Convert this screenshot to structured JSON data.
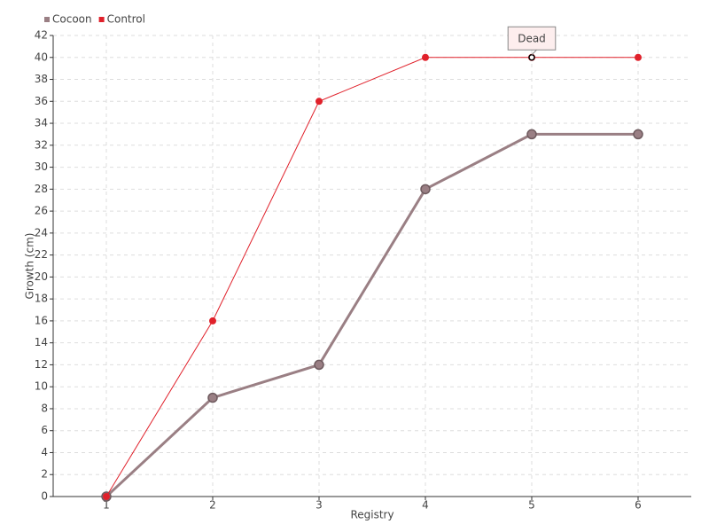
{
  "chart_data": {
    "type": "line",
    "x_label": "Registry",
    "y_label": "Growth (cm)",
    "x": [
      1,
      2,
      3,
      4,
      5,
      6
    ],
    "series": [
      {
        "name": "Cocoon",
        "color": "#9a7f84",
        "values": [
          0,
          9,
          12,
          28,
          33,
          33
        ]
      },
      {
        "name": "Control",
        "color": "#e0202a",
        "values": [
          0,
          16,
          36,
          40,
          40,
          40
        ]
      }
    ],
    "xlim": [
      0.5,
      6.5
    ],
    "xticks": [
      1,
      2,
      3,
      4,
      5,
      6
    ],
    "ylim": [
      0,
      42
    ],
    "yticks": [
      0,
      2,
      4,
      6,
      8,
      10,
      12,
      14,
      16,
      18,
      20,
      22,
      24,
      26,
      28,
      30,
      32,
      34,
      36,
      38,
      40,
      42
    ],
    "grid": true,
    "legend": "top-left",
    "annotations": [
      {
        "text": "Dead",
        "x": 5,
        "y": 40
      }
    ]
  }
}
